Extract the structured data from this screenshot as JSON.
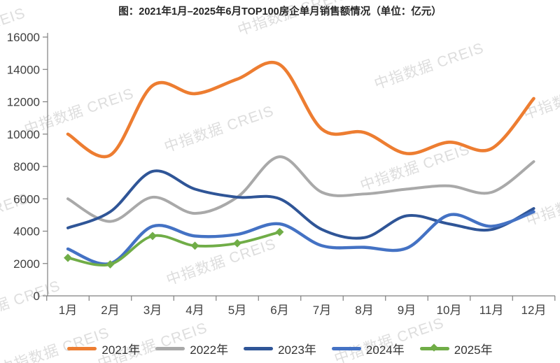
{
  "title": "图：2021年1月–2025年6月TOP100房企单月销售额情况（单位：亿元）",
  "watermark": {
    "text": "中指数据 CREIS"
  },
  "chart_data": {
    "type": "line",
    "unit": "亿元",
    "categories": [
      "1月",
      "2月",
      "3月",
      "4月",
      "5月",
      "6月",
      "7月",
      "8月",
      "9月",
      "10月",
      "11月",
      "12月"
    ],
    "ylim": [
      0,
      16000
    ],
    "ytick_step": 2000,
    "yticks": [
      0,
      2000,
      4000,
      6000,
      8000,
      10000,
      12000,
      14000,
      16000
    ],
    "grid": false,
    "legend_position": "bottom",
    "series": [
      {
        "name": "2021年",
        "color": "#ED7D31",
        "marker": "none",
        "values": [
          10000,
          8700,
          13000,
          12500,
          13400,
          14300,
          10300,
          10100,
          8800,
          9500,
          9100,
          12200
        ]
      },
      {
        "name": "2022年",
        "color": "#A9A9A9",
        "marker": "none",
        "values": [
          6000,
          4600,
          6100,
          5100,
          6100,
          8600,
          6400,
          6300,
          6600,
          6800,
          6400,
          8300
        ]
      },
      {
        "name": "2023年",
        "color": "#2F5597",
        "marker": "none",
        "values": [
          4200,
          5200,
          7700,
          6600,
          6100,
          6000,
          4100,
          3600,
          4950,
          4450,
          4100,
          5400
        ]
      },
      {
        "name": "2024年",
        "color": "#4472C4",
        "marker": "none",
        "values": [
          2900,
          2000,
          4300,
          3700,
          3800,
          4450,
          3100,
          3000,
          2950,
          5000,
          4300,
          5200
        ]
      },
      {
        "name": "2025年",
        "color": "#70AD47",
        "marker": "diamond",
        "values": [
          2350,
          1950,
          3700,
          3100,
          3250,
          3950
        ]
      }
    ],
    "axis_color": "#7f7f7f",
    "tick_label_color": "#3f3f3f"
  }
}
